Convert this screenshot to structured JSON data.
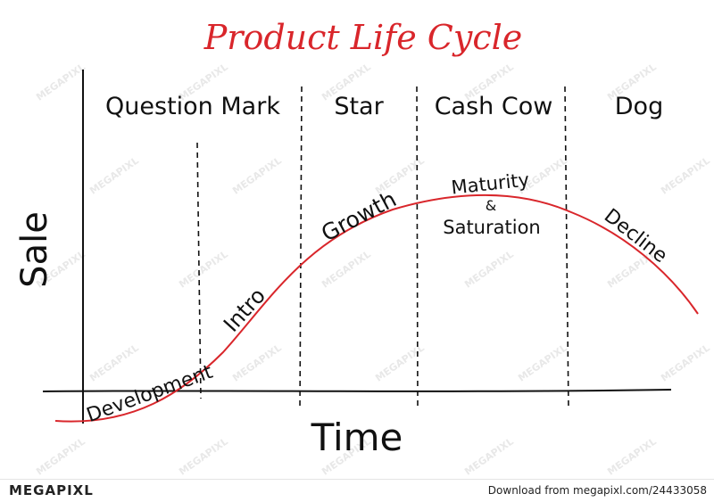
{
  "diagram": {
    "title": "Product Life Cycle",
    "y_axis_label": "Sale",
    "x_axis_label": "Time",
    "categories": [
      "Question Mark",
      "Star",
      "Cash Cow",
      "Dog"
    ],
    "stages": [
      "Development",
      "Intro",
      "Growth",
      "Maturity",
      "&",
      "Saturation",
      "Decline"
    ],
    "watermark": "MEGAPIXL",
    "colors": {
      "curve": "#d9262b",
      "title": "#d9262b",
      "ink": "#111111"
    }
  },
  "footer": {
    "brand": "MEGAPIXL",
    "credit": "Download from megapixl.com/24433058"
  }
}
